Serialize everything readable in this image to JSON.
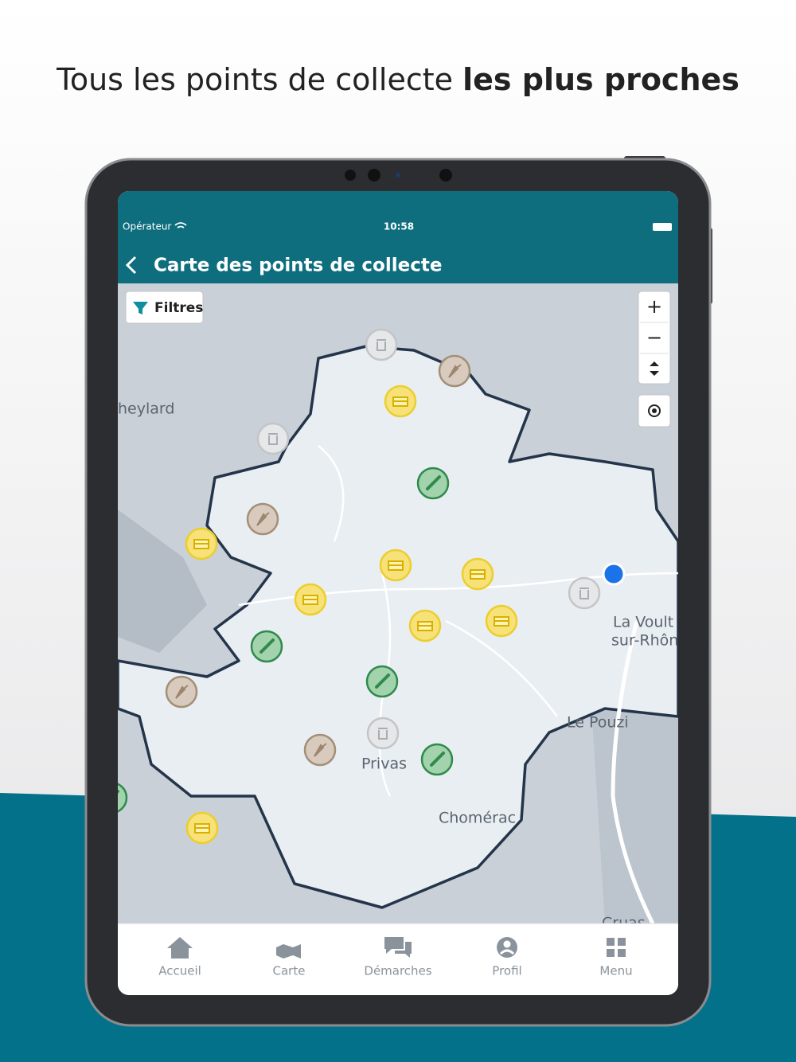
{
  "headline": {
    "regular": "Tous les points de collecte ",
    "bold": "les plus proches"
  },
  "status_bar": {
    "carrier": "Opérateur",
    "time": "10:58"
  },
  "nav_bar": {
    "title": "Carte des points de collecte"
  },
  "map": {
    "filter_button": "Filtres",
    "zoom_in": "+",
    "zoom_out": "−",
    "places": [
      "heylard",
      "La Voult",
      "sur-Rhôn",
      "Le Pouzi",
      "Privas",
      "Chomérac",
      "Cruas"
    ]
  },
  "tab_bar": {
    "tabs": [
      "Accueil",
      "Carte",
      "Démarches",
      "Profil",
      "Menu"
    ]
  }
}
